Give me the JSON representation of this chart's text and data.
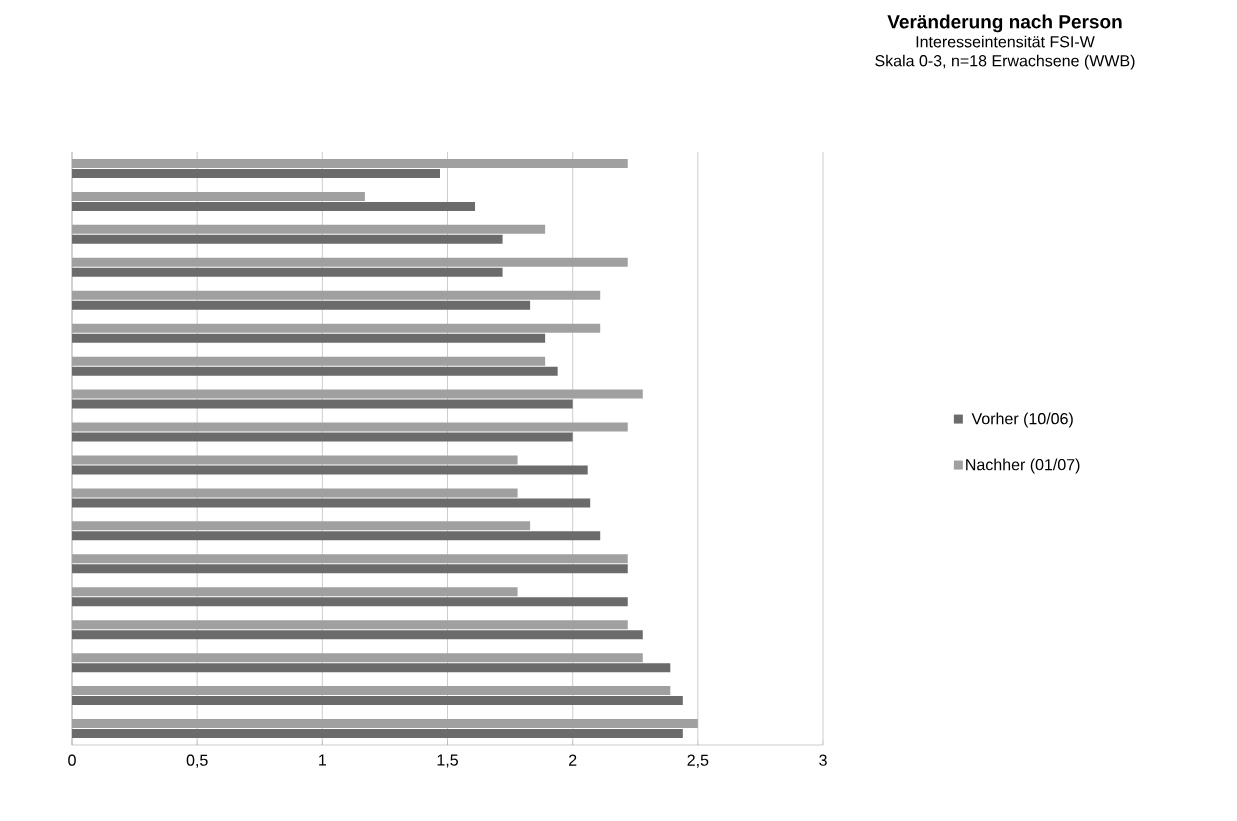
{
  "chart_data": {
    "type": "bar",
    "orientation": "horizontal",
    "title": "Veränderung nach Person",
    "subtitle": "Interesseintensität FSI-W",
    "annotations": [
      "Skala 0-3, n=18 Erwachsene (WWB)"
    ],
    "categories": [
      null,
      null,
      null,
      null,
      null,
      null,
      null,
      null,
      null,
      null,
      null,
      null,
      null,
      null,
      null,
      null,
      null,
      null
    ],
    "series": [
      {
        "name": "Vorher (10/06)",
        "color": "#6b6b6b",
        "values": [
          1.47,
          1.61,
          1.72,
          1.72,
          1.83,
          1.89,
          1.94,
          2.0,
          2.0,
          2.06,
          2.07,
          2.11,
          2.22,
          2.22,
          2.28,
          2.39,
          2.44,
          2.44
        ]
      },
      {
        "name": "Nachher (01/07)",
        "color": "#a0a0a0",
        "values": [
          2.22,
          1.17,
          1.89,
          2.22,
          2.11,
          2.11,
          1.89,
          2.28,
          2.22,
          1.78,
          1.78,
          1.83,
          2.22,
          1.78,
          2.22,
          2.28,
          2.39,
          2.5
        ]
      }
    ],
    "xlim": [
      0,
      3
    ],
    "xticks": [
      0,
      {
        "value": 0.5,
        "label": "0,5"
      },
      1,
      {
        "value": 1.5,
        "label": "1,5"
      },
      2,
      {
        "value": 2.5,
        "label": "2,5"
      },
      3
    ],
    "grid": "x",
    "legend": "right"
  }
}
